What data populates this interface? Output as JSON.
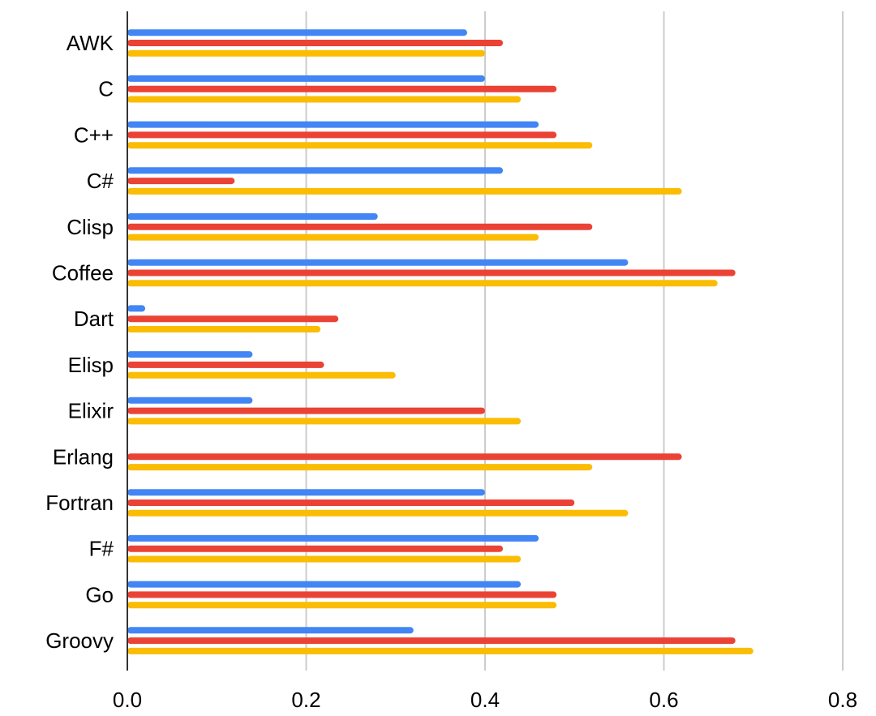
{
  "chart_data": {
    "type": "bar",
    "orientation": "horizontal",
    "categories": [
      "AWK",
      "C",
      "C++",
      "C#",
      "Clisp",
      "Coffee",
      "Dart",
      "Elisp",
      "Elixir",
      "Erlang",
      "Fortran",
      "F#",
      "Go",
      "Groovy"
    ],
    "series": [
      {
        "color": "#4285f4",
        "values": [
          0.38,
          0.4,
          0.46,
          0.42,
          0.28,
          0.56,
          0.02,
          0.14,
          0.14,
          0.0,
          0.4,
          0.46,
          0.44,
          0.32
        ]
      },
      {
        "color": "#ea4335",
        "values": [
          0.42,
          0.48,
          0.48,
          0.12,
          0.52,
          0.68,
          0.236,
          0.22,
          0.4,
          0.62,
          0.5,
          0.42,
          0.48,
          0.68
        ]
      },
      {
        "color": "#fbbc04",
        "values": [
          0.4,
          0.44,
          0.52,
          0.62,
          0.46,
          0.66,
          0.216,
          0.3,
          0.44,
          0.52,
          0.56,
          0.44,
          0.48,
          0.7
        ]
      }
    ],
    "xlim": [
      0,
      0.8
    ],
    "xticks": [
      0,
      0.2,
      0.4,
      0.6,
      0.8
    ],
    "xtick_labels": [
      "0.0",
      "0.2",
      "0.4",
      "0.6",
      "0.8"
    ],
    "grid": true,
    "legend": false,
    "title": "",
    "xlabel": "",
    "ylabel": ""
  }
}
